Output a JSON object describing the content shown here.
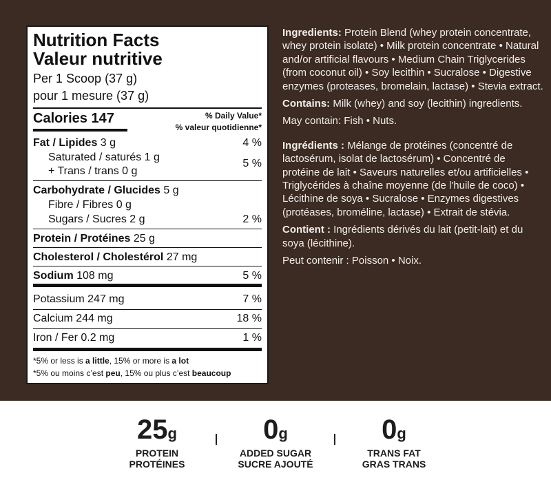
{
  "label": {
    "title_en": "Nutrition Facts",
    "title_fr": "Valeur nutritive",
    "serving_en": "Per 1 Scoop (37 g)",
    "serving_fr": "pour 1 mesure (37 g)",
    "calories_label": "Calories 147",
    "dv_en": "% Daily Value*",
    "dv_fr": "% valeur quotidienne*",
    "rows": [
      {
        "name": "Fat / Lipides",
        "amount": "3 g",
        "dv": "4 %"
      },
      {
        "name": "Saturated / saturés 1 g",
        "amount": "",
        "dv": "5 %"
      },
      {
        "name": "+ Trans / trans 0 g",
        "amount": "",
        "dv": ""
      },
      {
        "name": "Carbohydrate / Glucides",
        "amount": "5 g",
        "dv": ""
      },
      {
        "name": "Fibre / Fibres 0 g",
        "amount": "",
        "dv": ""
      },
      {
        "name": "Sugars / Sucres 2 g",
        "amount": "",
        "dv": "2 %"
      },
      {
        "name": "Protein / Protéines",
        "amount": "25 g",
        "dv": ""
      },
      {
        "name": "Cholesterol / Cholestérol",
        "amount": "27 mg",
        "dv": ""
      },
      {
        "name": "Sodium",
        "amount": "108 mg",
        "dv": "5 %"
      },
      {
        "name": "Potassium 247 mg",
        "amount": "",
        "dv": "7 %"
      },
      {
        "name": "Calcium 244 mg",
        "amount": "",
        "dv": "18 %"
      },
      {
        "name": "Iron / Fer 0.2 mg",
        "amount": "",
        "dv": "1 %"
      }
    ],
    "foot_en": [
      "*5% or less is ",
      "a little",
      ", 15% or more is ",
      "a lot"
    ],
    "foot_fr": [
      "*5% ou moins c’est ",
      "peu",
      ", 15% ou plus c’est ",
      "beaucoup"
    ]
  },
  "ingredients": {
    "en_head": "Ingredients:",
    "en_text": "Protein Blend (whey protein concentrate, whey protein isolate) • Milk protein concentrate • Natural and/or artificial flavours • Medium Chain Triglycerides (from coconut oil) • Soy lecithin • Sucralose • Digestive enzymes (proteases, bromelain, lactase) • Stevia extract.",
    "contains_head": "Contains:",
    "contains_text": "Milk (whey) and soy (lecithin) ingredients.",
    "may": "May contain: Fish • Nuts.",
    "fr_head": "Ingrédients :",
    "fr_text": "Mélange de protéines (concentré de lactosérum, isolat de lactosérum) • Concentré de protéine de lait • Saveurs naturelles et/ou artificielles • Triglycérides à chaîne moyenne (de l'huile de coco) • Lécithine de soya • Sucralose • Enzymes digestives (protéases, broméline, lactase) • Extrait de stévia.",
    "contient_head": "Contient :",
    "contient_text": "Ingrédients dérivés du lait (petit-lait) et du soya (lécithine).",
    "peut": "Peut contenir : Poisson • Noix."
  },
  "stats": [
    {
      "value": "25",
      "unit": "g",
      "en": "PROTEIN",
      "fr": "PROTÉINES"
    },
    {
      "value": "0",
      "unit": "g",
      "en": "ADDED SUGAR",
      "fr": "SUCRE AJOUTÉ"
    },
    {
      "value": "0",
      "unit": "g",
      "en": "TRANS FAT",
      "fr": "GRAS TRANS"
    }
  ],
  "colors": {
    "panel": "#3b2b23",
    "text_light": "#f3ede8"
  }
}
